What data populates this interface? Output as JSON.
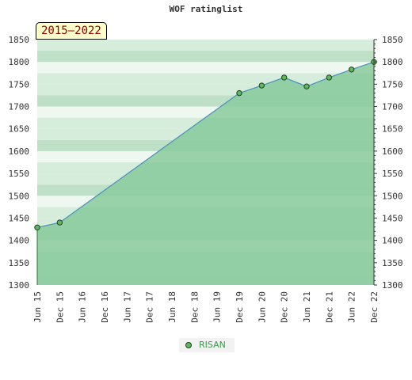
{
  "chart_data": {
    "type": "area",
    "title": "WOF ratinglist",
    "period_label": "2015–2022",
    "x": [
      "Jun 15",
      "Dec 15",
      "Jun 16",
      "Dec 16",
      "Jun 17",
      "Dec 17",
      "Jun 18",
      "Dec 18",
      "Jun 19",
      "Dec 19",
      "Jun 20",
      "Dec 20",
      "Jun 21",
      "Dec 21",
      "Jun 22",
      "Dec 22"
    ],
    "series": [
      {
        "name": "RISAN",
        "points": [
          {
            "x": "Jun 15",
            "y": 1429
          },
          {
            "x": "Dec 15",
            "y": 1440
          },
          {
            "x": "Dec 19",
            "y": 1730
          },
          {
            "x": "Jun 20",
            "y": 1747
          },
          {
            "x": "Dec 20",
            "y": 1765
          },
          {
            "x": "Jun 21",
            "y": 1745
          },
          {
            "x": "Dec 21",
            "y": 1765
          },
          {
            "x": "Jun 22",
            "y": 1783
          },
          {
            "x": "Dec 22",
            "y": 1800
          }
        ]
      }
    ],
    "ylim": [
      1300,
      1850
    ],
    "yticks": [
      1300,
      1350,
      1400,
      1450,
      1500,
      1550,
      1600,
      1650,
      1700,
      1750,
      1800,
      1850
    ],
    "grid": false,
    "legend_position": "bottom",
    "colors": {
      "line": "#4a90c0",
      "marker_fill": "#5cb85c",
      "marker_stroke": "#1f4020",
      "area_fill": "#7cc492",
      "legend_text": "#3a9a4a",
      "stripe_dark": "#b9dfc3",
      "stripe_light": "#d6eddc",
      "stripe_white": "#eef8f0"
    }
  }
}
